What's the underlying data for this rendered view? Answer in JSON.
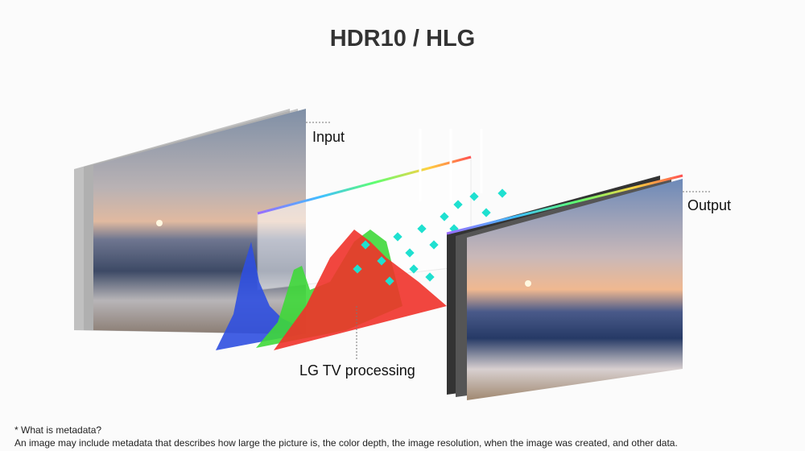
{
  "title": "HDR10 / HLG",
  "labels": {
    "input": "Input",
    "processing": "LG TV processing",
    "output": "Output"
  },
  "footnote": {
    "question": "* What is metadata?",
    "answer": "An image may include metadata that describes how large the picture is, the color depth, the image resolution, when the image was created, and other data."
  },
  "colors": {
    "histogram_blue": "#2f4fe0",
    "histogram_green": "#3fd83a",
    "histogram_red": "#f0322a",
    "metadata_particles": "#1fe0d0"
  }
}
